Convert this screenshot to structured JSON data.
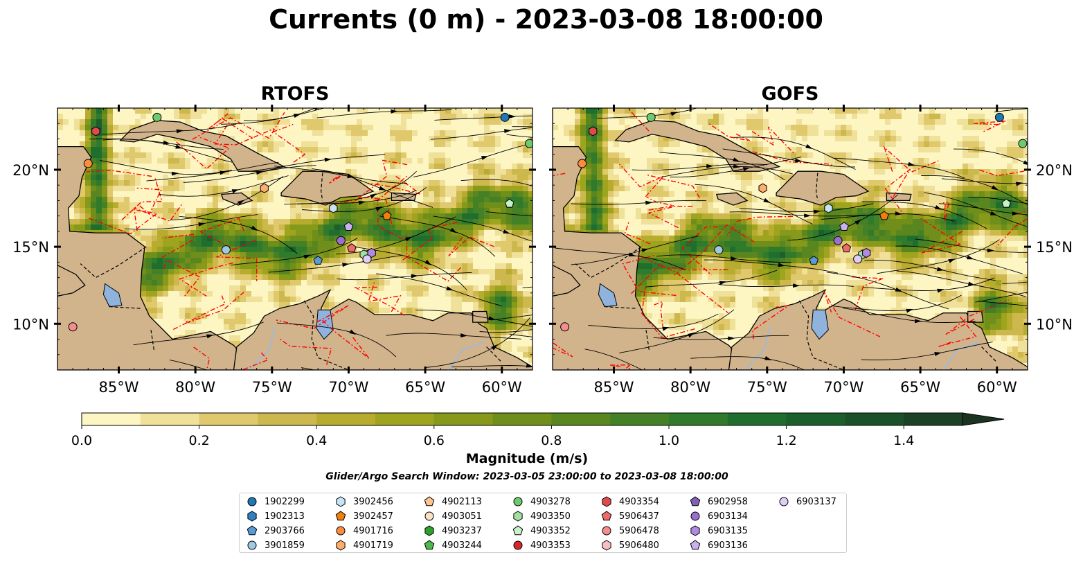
{
  "title": "Currents (0 m) - 2023-03-08 18:00:00",
  "panels": [
    {
      "title": "RTOFS"
    },
    {
      "title": "GOFS"
    }
  ],
  "map": {
    "lon_ticks": [
      "85°W",
      "80°W",
      "75°W",
      "70°W",
      "65°W",
      "60°W"
    ],
    "lat_ticks": [
      "20°N",
      "15°N",
      "10°N"
    ]
  },
  "colorbar": {
    "label": "Magnitude (m/s)",
    "ticks": [
      "0.0",
      "0.2",
      "0.4",
      "0.6",
      "0.8",
      "1.0",
      "1.2",
      "1.4"
    ],
    "colors": [
      "#fdf6c3",
      "#efe09a",
      "#e0c96c",
      "#cdb84d",
      "#b8ac2f",
      "#9ea41d",
      "#86991a",
      "#6f8f1a",
      "#5a861f",
      "#448026",
      "#307a2c",
      "#1f6e2e",
      "#1b602c",
      "#1b512a",
      "#1c4226",
      "#1b3320"
    ]
  },
  "search_window": "Glider/Argo Search Window: 2023-03-05 23:00:00 to 2023-03-08 18:00:00",
  "legend": [
    {
      "id": "1902299",
      "shape": "circle",
      "color": "#1f77b4"
    },
    {
      "id": "1902313",
      "shape": "hexagon",
      "color": "#2f7fc1"
    },
    {
      "id": "2903766",
      "shape": "pentagon",
      "color": "#5a9bd5"
    },
    {
      "id": "3901859",
      "shape": "circle",
      "color": "#9ecae1"
    },
    {
      "id": "3902456",
      "shape": "hexagon",
      "color": "#c6e4f5"
    },
    {
      "id": "3902457",
      "shape": "pentagon",
      "color": "#f07f0e"
    },
    {
      "id": "4901716",
      "shape": "circle",
      "color": "#fd8d3c"
    },
    {
      "id": "4901719",
      "shape": "hexagon",
      "color": "#fdae6b"
    },
    {
      "id": "4902113",
      "shape": "pentagon",
      "color": "#fdc48f"
    },
    {
      "id": "4903051",
      "shape": "circle",
      "color": "#fde0c5"
    },
    {
      "id": "4903237",
      "shape": "hexagon",
      "color": "#2ca02c"
    },
    {
      "id": "4903244",
      "shape": "pentagon",
      "color": "#4cba4c"
    },
    {
      "id": "4903278",
      "shape": "circle",
      "color": "#6fca6f"
    },
    {
      "id": "4903350",
      "shape": "hexagon",
      "color": "#a1e0a1"
    },
    {
      "id": "4903352",
      "shape": "pentagon",
      "color": "#c7f2c7"
    },
    {
      "id": "4903353",
      "shape": "circle",
      "color": "#d62728"
    },
    {
      "id": "4903354",
      "shape": "hexagon",
      "color": "#e04a4a"
    },
    {
      "id": "5906437",
      "shape": "pentagon",
      "color": "#ee6b6b"
    },
    {
      "id": "5906478",
      "shape": "circle",
      "color": "#f28e8e"
    },
    {
      "id": "5906480",
      "shape": "hexagon",
      "color": "#f7c0c0"
    },
    {
      "id": "6902958",
      "shape": "pentagon",
      "color": "#8560b8"
    },
    {
      "id": "6903134",
      "shape": "circle",
      "color": "#9b6fd0"
    },
    {
      "id": "6903135",
      "shape": "hexagon",
      "color": "#b08ae0"
    },
    {
      "id": "6903136",
      "shape": "pentagon",
      "color": "#cbb0ee"
    },
    {
      "id": "6903137",
      "shape": "circle",
      "color": "#e0ccf8"
    }
  ],
  "chart_data": {
    "type": "heatmap",
    "title": "Currents (0 m) - 2023-03-08 18:00:00",
    "subplots": [
      "RTOFS",
      "GOFS"
    ],
    "xlim": [
      -89,
      -58
    ],
    "ylim": [
      7,
      24
    ],
    "colorbar_range": [
      0.0,
      1.5
    ],
    "colorbar_label": "Magnitude (m/s)",
    "colorbar_extend": "max",
    "grid": false,
    "legend_placement": "bottom-center",
    "float_positions": [
      {
        "lon": -82.5,
        "lat": 23.4,
        "color": "#6fca6f",
        "shape": "circle"
      },
      {
        "lon": -59.8,
        "lat": 23.4,
        "color": "#1f77b4",
        "shape": "circle"
      },
      {
        "lon": -86.5,
        "lat": 22.5,
        "color": "#e04a4a",
        "shape": "hexagon"
      },
      {
        "lon": -87.0,
        "lat": 20.4,
        "color": "#fd8d3c",
        "shape": "circle"
      },
      {
        "lon": -75.5,
        "lat": 18.8,
        "color": "#fdae6b",
        "shape": "hexagon"
      },
      {
        "lon": -71.0,
        "lat": 17.5,
        "color": "#c6e4f5",
        "shape": "hexagon"
      },
      {
        "lon": -59.5,
        "lat": 17.8,
        "color": "#c7f2c7",
        "shape": "pentagon"
      },
      {
        "lon": -67.5,
        "lat": 17.0,
        "color": "#f07f0e",
        "shape": "pentagon"
      },
      {
        "lon": -70.0,
        "lat": 16.3,
        "color": "#cbb0ee",
        "shape": "pentagon"
      },
      {
        "lon": -70.5,
        "lat": 15.4,
        "color": "#9b6fd0",
        "shape": "circle"
      },
      {
        "lon": -69.8,
        "lat": 14.9,
        "color": "#ee6b6b",
        "shape": "pentagon"
      },
      {
        "lon": -78.0,
        "lat": 14.8,
        "color": "#9ecae1",
        "shape": "circle"
      },
      {
        "lon": -69.0,
        "lat": 14.5,
        "color": "#a1e0a1",
        "shape": "hexagon"
      },
      {
        "lon": -68.5,
        "lat": 14.6,
        "color": "#b08ae0",
        "shape": "hexagon"
      },
      {
        "lon": -68.8,
        "lat": 14.2,
        "color": "#e0ccf8",
        "shape": "circle"
      },
      {
        "lon": -72.0,
        "lat": 14.1,
        "color": "#5a9bd5",
        "shape": "pentagon"
      },
      {
        "lon": -88.0,
        "lat": 9.8,
        "color": "#f28e8e",
        "shape": "circle"
      },
      {
        "lon": -58.2,
        "lat": 21.7,
        "color": "#6fca6f",
        "shape": "circle"
      }
    ]
  }
}
